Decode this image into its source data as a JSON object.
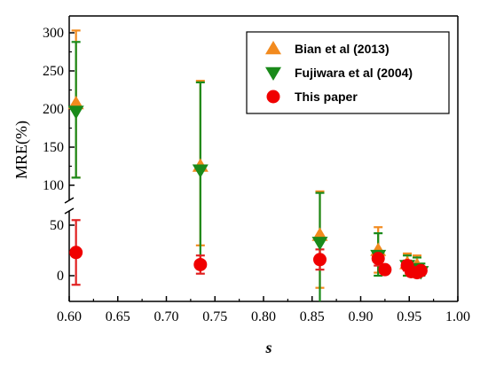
{
  "chart_data": {
    "type": "scatter",
    "xlabel": "s",
    "ylabel": "MRE(%)",
    "xlim": [
      0.6,
      1.0
    ],
    "x_ticks": [
      "0.60",
      "0.65",
      "0.70",
      "0.75",
      "0.80",
      "0.85",
      "0.90",
      "0.95",
      "1.00"
    ],
    "y_axis_break": true,
    "y_ranges": [
      [
        -15,
        60
      ],
      [
        100,
        310
      ]
    ],
    "y_ticks_lower": [
      "0",
      "50"
    ],
    "y_ticks_upper": [
      "100",
      "150",
      "200",
      "250",
      "300"
    ],
    "legend_position": "top-right",
    "series": [
      {
        "name": "Bian et al (2013)",
        "marker": "triangle-up",
        "color": "#F28A1E",
        "points": [
          {
            "x": 0.607,
            "y": 207,
            "ylow": 110,
            "yhigh": 303
          },
          {
            "x": 0.735,
            "y": 125,
            "ylow": 30,
            "yhigh": 237
          },
          {
            "x": 0.858,
            "y": 40,
            "ylow": -12,
            "yhigh": 92
          },
          {
            "x": 0.918,
            "y": 25,
            "ylow": 3,
            "yhigh": 48
          },
          {
            "x": 0.948,
            "y": 12,
            "ylow": 0,
            "yhigh": 22
          },
          {
            "x": 0.958,
            "y": 10,
            "ylow": 0,
            "yhigh": 20
          }
        ]
      },
      {
        "name": "Fujiwara et al (2004)",
        "marker": "triangle-down",
        "color": "#1A8A1A",
        "points": [
          {
            "x": 0.607,
            "y": 197,
            "ylow": 110,
            "yhigh": 288
          },
          {
            "x": 0.735,
            "y": 120,
            "ylow": 10,
            "yhigh": 235
          },
          {
            "x": 0.858,
            "y": 33,
            "ylow": -30,
            "yhigh": 90
          },
          {
            "x": 0.918,
            "y": 20,
            "ylow": 0,
            "yhigh": 42
          },
          {
            "x": 0.948,
            "y": 10,
            "ylow": 0,
            "yhigh": 20
          },
          {
            "x": 0.958,
            "y": 7,
            "ylow": 0,
            "yhigh": 18
          },
          {
            "x": 0.962,
            "y": 4,
            "ylow": 0,
            "yhigh": 12
          }
        ]
      },
      {
        "name": "This paper",
        "marker": "circle",
        "color": "#F00000",
        "errorbar_color": "#E02020",
        "points": [
          {
            "x": 0.607,
            "y": 23,
            "ylow": -9,
            "yhigh": 55
          },
          {
            "x": 0.735,
            "y": 11,
            "ylow": 2,
            "yhigh": 20
          },
          {
            "x": 0.858,
            "y": 16,
            "ylow": 6,
            "yhigh": 26
          },
          {
            "x": 0.918,
            "y": 17,
            "ylow": 10,
            "yhigh": 24
          },
          {
            "x": 0.925,
            "y": 6,
            "ylow": 2,
            "yhigh": 10
          },
          {
            "x": 0.948,
            "y": 10,
            "ylow": 5,
            "yhigh": 15
          },
          {
            "x": 0.952,
            "y": 4,
            "ylow": 0,
            "yhigh": 8
          },
          {
            "x": 0.958,
            "y": 3,
            "ylow": 0,
            "yhigh": 6
          },
          {
            "x": 0.962,
            "y": 5,
            "ylow": 1,
            "yhigh": 9
          }
        ]
      }
    ]
  }
}
